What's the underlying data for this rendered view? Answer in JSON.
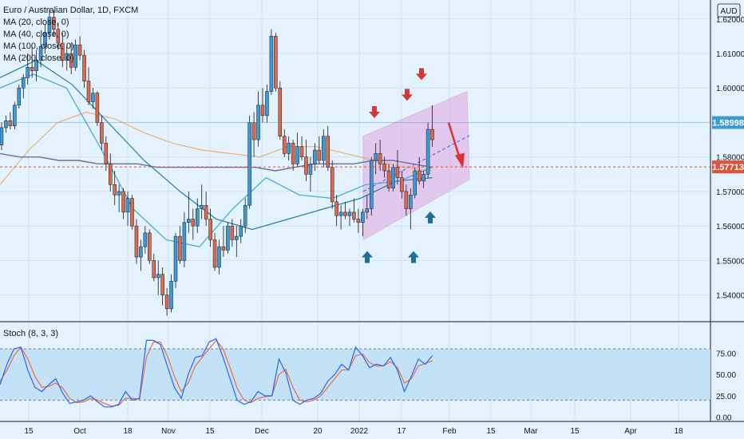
{
  "legend": {
    "symbol": "Euro / Australian Dollar, 1D, FXCM",
    "ma1": "MA (20, close, 0)",
    "ma2": "MA (40, close, 0)",
    "ma3": "MA (100, close, 0)",
    "ma4": "MA (200, close, 0)"
  },
  "currency": "AUD",
  "stoch_label": "Stoch (8, 3, 3)",
  "price_tags": {
    "current": "1.58998",
    "level": "1.57713"
  },
  "colors": {
    "background": "#e3f2fd",
    "up": "#3d9ad6",
    "down": "#dc6a4c",
    "ma20": "#3aa8d8",
    "ma40": "#1e7fa8",
    "ma100": "#6b6fa0",
    "ma200": "#f0b070",
    "arrow_up": "#1f6f9a",
    "arrow_down": "#d23a3a",
    "channel": "#e2a7e0",
    "stoch_k": "#2962ff",
    "stoch_d": "#f26b33"
  },
  "chart_data": {
    "type": "candlestick",
    "title": "Euro / Australian Dollar, 1D, FXCM",
    "price_axis": {
      "ticks": [
        "1.62000",
        "1.61000",
        "1.60000",
        "1.59000",
        "1.58000",
        "1.57000",
        "1.56000",
        "1.55000",
        "1.54000"
      ],
      "range": [
        1.5325,
        1.6255
      ]
    },
    "time_axis": {
      "ticks": [
        "15",
        "Oct",
        "18",
        "Nov",
        "15",
        "Dec",
        "20",
        "2022",
        "17",
        "Feb",
        "15",
        "Mar",
        "15",
        "Apr",
        "18"
      ]
    },
    "stoch_axis": {
      "ticks": [
        "75.00",
        "50.00",
        "25.00",
        "0.00"
      ],
      "range": [
        -5,
        110
      ],
      "bands": [
        80,
        20
      ]
    },
    "candles": [
      [
        1.5835,
        1.59,
        1.582,
        1.5885
      ],
      [
        1.5885,
        1.592,
        1.587,
        1.5905
      ],
      [
        1.5905,
        1.593,
        1.588,
        1.589
      ],
      [
        1.589,
        1.596,
        1.588,
        1.595
      ],
      [
        1.595,
        1.601,
        1.594,
        1.6
      ],
      [
        1.6,
        1.604,
        1.597,
        1.603
      ],
      [
        1.603,
        1.61,
        1.601,
        1.606
      ],
      [
        1.606,
        1.612,
        1.603,
        1.605
      ],
      [
        1.605,
        1.611,
        1.602,
        1.608
      ],
      [
        1.608,
        1.615,
        1.606,
        1.612
      ],
      [
        1.612,
        1.6185,
        1.61,
        1.616
      ],
      [
        1.616,
        1.623,
        1.614,
        1.6205
      ],
      [
        1.6205,
        1.6225,
        1.615,
        1.617
      ],
      [
        1.617,
        1.619,
        1.611,
        1.613
      ],
      [
        1.613,
        1.616,
        1.606,
        1.608
      ],
      [
        1.608,
        1.6125,
        1.605,
        1.61
      ],
      [
        1.61,
        1.613,
        1.604,
        1.606
      ],
      [
        1.606,
        1.614,
        1.605,
        1.6125
      ],
      [
        1.6125,
        1.615,
        1.608,
        1.6095
      ],
      [
        1.6095,
        1.611,
        1.6,
        1.602
      ],
      [
        1.602,
        1.606,
        1.595,
        1.596
      ],
      [
        1.596,
        1.6,
        1.594,
        1.5985
      ],
      [
        1.5985,
        1.599,
        1.589,
        1.59
      ],
      [
        1.59,
        1.592,
        1.582,
        1.584
      ],
      [
        1.584,
        1.586,
        1.576,
        1.578
      ],
      [
        1.578,
        1.581,
        1.57,
        1.572
      ],
      [
        1.572,
        1.576,
        1.566,
        1.569
      ],
      [
        1.569,
        1.572,
        1.564,
        1.57
      ],
      [
        1.57,
        1.571,
        1.562,
        1.564
      ],
      [
        1.564,
        1.57,
        1.56,
        1.568
      ],
      [
        1.568,
        1.569,
        1.559,
        1.56
      ],
      [
        1.56,
        1.562,
        1.549,
        1.551
      ],
      [
        1.551,
        1.556,
        1.547,
        1.554
      ],
      [
        1.554,
        1.56,
        1.552,
        1.558
      ],
      [
        1.558,
        1.559,
        1.549,
        1.55
      ],
      [
        1.55,
        1.552,
        1.544,
        1.545
      ],
      [
        1.545,
        1.55,
        1.54,
        1.546
      ],
      [
        1.546,
        1.548,
        1.537,
        1.54
      ],
      [
        1.54,
        1.542,
        1.534,
        1.536
      ],
      [
        1.536,
        1.546,
        1.535,
        1.544
      ],
      [
        1.544,
        1.558,
        1.542,
        1.557
      ],
      [
        1.557,
        1.56,
        1.549,
        1.55
      ],
      [
        1.55,
        1.564,
        1.548,
        1.561
      ],
      [
        1.561,
        1.57,
        1.558,
        1.562
      ],
      [
        1.562,
        1.565,
        1.556,
        1.56
      ],
      [
        1.56,
        1.568,
        1.558,
        1.565
      ],
      [
        1.565,
        1.572,
        1.562,
        1.566
      ],
      [
        1.566,
        1.57,
        1.56,
        1.562
      ],
      [
        1.562,
        1.565,
        1.554,
        1.556
      ],
      [
        1.556,
        1.558,
        1.547,
        1.548
      ],
      [
        1.548,
        1.556,
        1.546,
        1.554
      ],
      [
        1.554,
        1.56,
        1.551,
        1.553
      ],
      [
        1.553,
        1.561,
        1.552,
        1.56
      ],
      [
        1.56,
        1.562,
        1.554,
        1.556
      ],
      [
        1.556,
        1.56,
        1.551,
        1.557
      ],
      [
        1.557,
        1.562,
        1.555,
        1.56
      ],
      [
        1.56,
        1.568,
        1.558,
        1.566
      ],
      [
        1.566,
        1.592,
        1.565,
        1.59
      ],
      [
        1.59,
        1.593,
        1.58,
        1.585
      ],
      [
        1.585,
        1.599,
        1.583,
        1.595
      ],
      [
        1.595,
        1.6,
        1.59,
        1.592
      ],
      [
        1.592,
        1.601,
        1.59,
        1.599
      ],
      [
        1.599,
        1.617,
        1.598,
        1.615
      ],
      [
        1.615,
        1.616,
        1.599,
        1.6
      ],
      [
        1.6,
        1.602,
        1.585,
        1.586
      ],
      [
        1.586,
        1.588,
        1.58,
        1.581
      ],
      [
        1.581,
        1.586,
        1.579,
        1.584
      ],
      [
        1.584,
        1.585,
        1.576,
        1.578
      ],
      [
        1.578,
        1.587,
        1.577,
        1.583
      ],
      [
        1.583,
        1.586,
        1.579,
        1.58
      ],
      [
        1.58,
        1.585,
        1.573,
        1.575
      ],
      [
        1.575,
        1.58,
        1.57,
        1.578
      ],
      [
        1.578,
        1.584,
        1.576,
        1.582
      ],
      [
        1.582,
        1.586,
        1.578,
        1.579
      ],
      [
        1.579,
        1.588,
        1.577,
        1.586
      ],
      [
        1.586,
        1.589,
        1.576,
        1.577
      ],
      [
        1.577,
        1.579,
        1.565,
        1.567
      ],
      [
        1.567,
        1.569,
        1.56,
        1.563
      ],
      [
        1.563,
        1.566,
        1.559,
        1.564
      ],
      [
        1.564,
        1.567,
        1.562,
        1.563
      ],
      [
        1.563,
        1.565,
        1.56,
        1.564
      ],
      [
        1.564,
        1.568,
        1.561,
        1.562
      ],
      [
        1.562,
        1.565,
        1.558,
        1.561
      ],
      [
        1.561,
        1.565,
        1.557,
        1.564
      ],
      [
        1.564,
        1.569,
        1.562,
        1.565
      ],
      [
        1.565,
        1.58,
        1.563,
        1.579
      ],
      [
        1.579,
        1.584,
        1.575,
        1.581
      ],
      [
        1.581,
        1.585,
        1.576,
        1.578
      ],
      [
        1.578,
        1.58,
        1.574,
        1.576
      ],
      [
        1.576,
        1.578,
        1.57,
        1.571
      ],
      [
        1.571,
        1.578,
        1.57,
        1.577
      ],
      [
        1.577,
        1.582,
        1.572,
        1.574
      ],
      [
        1.574,
        1.576,
        1.568,
        1.57
      ],
      [
        1.57,
        1.572,
        1.563,
        1.565
      ],
      [
        1.565,
        1.571,
        1.559,
        1.569
      ],
      [
        1.569,
        1.577,
        1.568,
        1.576
      ],
      [
        1.576,
        1.58,
        1.572,
        1.573
      ],
      [
        1.573,
        1.576,
        1.571,
        1.575
      ],
      [
        1.575,
        1.59,
        1.574,
        1.588
      ],
      [
        1.588,
        1.595,
        1.583,
        1.585
      ]
    ],
    "ma100": [
      1.581,
      1.58,
      1.58,
      1.579,
      1.579,
      1.578,
      1.578,
      1.578,
      1.577,
      1.577,
      1.577,
      1.577,
      1.577,
      1.577,
      1.576,
      1.577,
      1.578,
      1.578,
      1.578,
      1.579,
      1.579,
      1.578,
      1.577
    ],
    "ma200": [
      1.572,
      1.582,
      1.59,
      1.593,
      1.591,
      1.587,
      1.584,
      1.582,
      1.581,
      1.58,
      1.583,
      1.583,
      1.581,
      1.579,
      1.577,
      1.576
    ],
    "ma20": [
      1.6,
      1.604,
      1.6,
      1.583,
      1.565,
      1.556,
      1.554,
      1.565,
      1.574,
      1.569,
      1.568,
      1.572,
      1.573,
      1.577
    ],
    "ma40": [
      1.603,
      1.608,
      1.601,
      1.59,
      1.579,
      1.57,
      1.562,
      1.559,
      1.562,
      1.565,
      1.568,
      1.573,
      1.574
    ],
    "stoch_k": [
      38,
      62,
      80,
      82,
      55,
      35,
      30,
      38,
      45,
      28,
      16,
      18,
      20,
      25,
      18,
      12,
      12,
      15,
      30,
      20,
      22,
      90,
      90,
      85,
      60,
      35,
      22,
      50,
      70,
      72,
      88,
      92,
      70,
      45,
      20,
      15,
      18,
      30,
      25,
      25,
      68,
      52,
      20,
      15,
      20,
      22,
      28,
      42,
      50,
      62,
      55,
      82,
      72,
      58,
      62,
      60,
      70,
      55,
      30,
      48,
      68,
      62,
      72
    ],
    "stoch_d": [
      42,
      55,
      72,
      82,
      68,
      48,
      35,
      36,
      40,
      34,
      22,
      17,
      18,
      22,
      20,
      16,
      13,
      14,
      22,
      22,
      21,
      70,
      88,
      88,
      72,
      48,
      30,
      40,
      60,
      70,
      80,
      90,
      80,
      58,
      34,
      20,
      17,
      22,
      24,
      25,
      50,
      56,
      35,
      20,
      18,
      20,
      25,
      35,
      45,
      55,
      56,
      72,
      74,
      64,
      60,
      60,
      65,
      58,
      40,
      45,
      60,
      63,
      66
    ]
  },
  "annotations": {
    "down_arrows": 3,
    "up_arrows": 3
  }
}
